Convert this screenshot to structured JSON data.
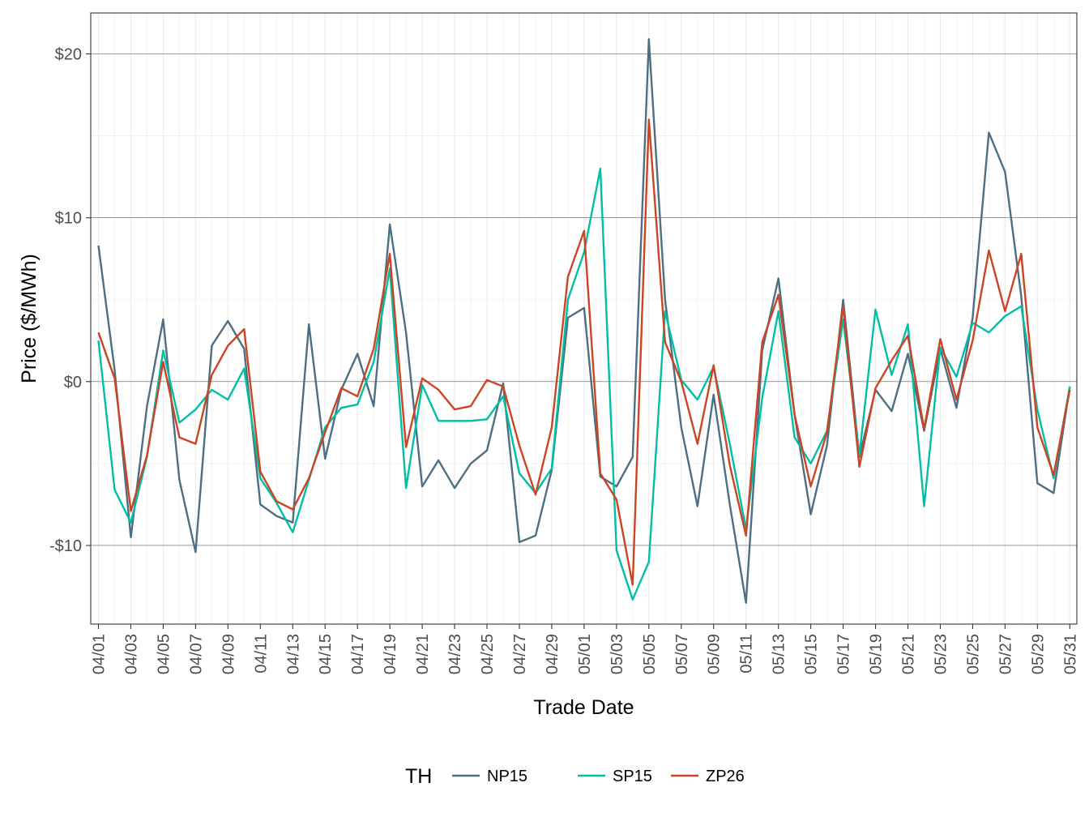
{
  "chart_data": {
    "type": "line",
    "xlabel": "Trade Date",
    "ylabel": "Price ($/MWh)",
    "ylim": [
      -14.8,
      22.5
    ],
    "yticks": [
      -10,
      0,
      10,
      20
    ],
    "ytick_labels": [
      "-$10",
      "$0",
      "$10",
      "$20"
    ],
    "grid": true,
    "legend_title": "TH",
    "legend_position": "bottom",
    "x": [
      "04/01",
      "04/02",
      "04/03",
      "04/04",
      "04/05",
      "04/06",
      "04/07",
      "04/08",
      "04/09",
      "04/10",
      "04/11",
      "04/12",
      "04/13",
      "04/14",
      "04/15",
      "04/16",
      "04/17",
      "04/18",
      "04/19",
      "04/20",
      "04/21",
      "04/22",
      "04/23",
      "04/24",
      "04/25",
      "04/26",
      "04/27",
      "04/28",
      "04/29",
      "04/30",
      "05/01",
      "05/02",
      "05/03",
      "05/04",
      "05/05",
      "05/06",
      "05/07",
      "05/08",
      "05/09",
      "05/10",
      "05/11",
      "05/12",
      "05/13",
      "05/14",
      "05/15",
      "05/16",
      "05/17",
      "05/18",
      "05/19",
      "05/20",
      "05/21",
      "05/22",
      "05/23",
      "05/24",
      "05/25",
      "05/26",
      "05/27",
      "05/28",
      "05/29",
      "05/30",
      "05/31"
    ],
    "xtick_labels": [
      "04/01",
      "04/03",
      "04/05",
      "04/07",
      "04/09",
      "04/11",
      "04/13",
      "04/15",
      "04/17",
      "04/19",
      "04/21",
      "04/23",
      "04/25",
      "04/27",
      "04/29",
      "05/01",
      "05/03",
      "05/05",
      "05/07",
      "05/09",
      "05/11",
      "05/13",
      "05/15",
      "05/17",
      "05/19",
      "05/21",
      "05/23",
      "05/25",
      "05/27",
      "05/29",
      "05/31"
    ],
    "series": [
      {
        "name": "NP15",
        "color": "#4e6e81",
        "values": [
          8.3,
          0.7,
          -9.5,
          -1.5,
          3.8,
          -6.0,
          -10.4,
          2.2,
          3.7,
          2.0,
          -7.5,
          -8.2,
          -8.6,
          3.5,
          -4.7,
          -0.5,
          1.7,
          -1.5,
          9.6,
          3.0,
          -6.4,
          -4.8,
          -6.5,
          -5.0,
          -4.2,
          -0.1,
          -9.8,
          -9.4,
          -5.4,
          3.9,
          4.5,
          -5.8,
          -6.4,
          -4.6,
          20.9,
          5.0,
          -2.8,
          -7.6,
          -0.8,
          -7.5,
          -13.5,
          1.9,
          6.3,
          -2.0,
          -8.1,
          -3.9,
          5.0,
          -4.6,
          -0.5,
          -1.8,
          1.7,
          -3.0,
          2.0,
          -1.6,
          3.9,
          15.2,
          12.8,
          5.2,
          -6.2,
          -6.8,
          -0.3
        ]
      },
      {
        "name": "SP15",
        "color": "#00bfa5",
        "values": [
          2.5,
          -6.6,
          -8.6,
          -4.6,
          1.9,
          -2.5,
          -1.7,
          -0.5,
          -1.1,
          0.8,
          -5.9,
          -7.4,
          -9.2,
          -6.0,
          -2.8,
          -1.6,
          -1.4,
          1.2,
          6.9,
          -6.5,
          -0.2,
          -2.4,
          -2.4,
          -2.4,
          -2.3,
          -0.9,
          -5.6,
          -6.8,
          -5.3,
          5.0,
          7.9,
          13.0,
          -10.3,
          -13.3,
          -11.0,
          4.3,
          0.1,
          -1.1,
          0.9,
          -3.8,
          -9.0,
          -1.0,
          4.3,
          -3.4,
          -5.0,
          -3.0,
          3.8,
          -4.5,
          4.4,
          0.4,
          3.5,
          -7.6,
          2.1,
          0.3,
          3.6,
          3.0,
          4.0,
          4.6,
          -1.7,
          -5.9,
          -0.3
        ]
      },
      {
        "name": "ZP26",
        "color": "#cc4422",
        "values": [
          3.0,
          0.2,
          -7.9,
          -4.5,
          1.2,
          -3.4,
          -3.8,
          0.4,
          2.2,
          3.2,
          -5.5,
          -7.3,
          -7.8,
          -5.9,
          -3.1,
          -0.4,
          -0.9,
          2.0,
          7.8,
          -4.0,
          0.2,
          -0.5,
          -1.7,
          -1.5,
          0.1,
          -0.3,
          -3.9,
          -6.9,
          -2.8,
          6.4,
          9.2,
          -5.6,
          -7.2,
          -12.4,
          16.0,
          2.4,
          0.0,
          -3.8,
          1.0,
          -5.1,
          -9.4,
          2.4,
          5.3,
          -2.0,
          -6.4,
          -3.1,
          4.6,
          -5.2,
          -0.4,
          1.3,
          2.8,
          -2.9,
          2.6,
          -1.1,
          2.5,
          8.0,
          4.3,
          7.8,
          -2.8,
          -5.7,
          -0.5
        ]
      }
    ]
  }
}
